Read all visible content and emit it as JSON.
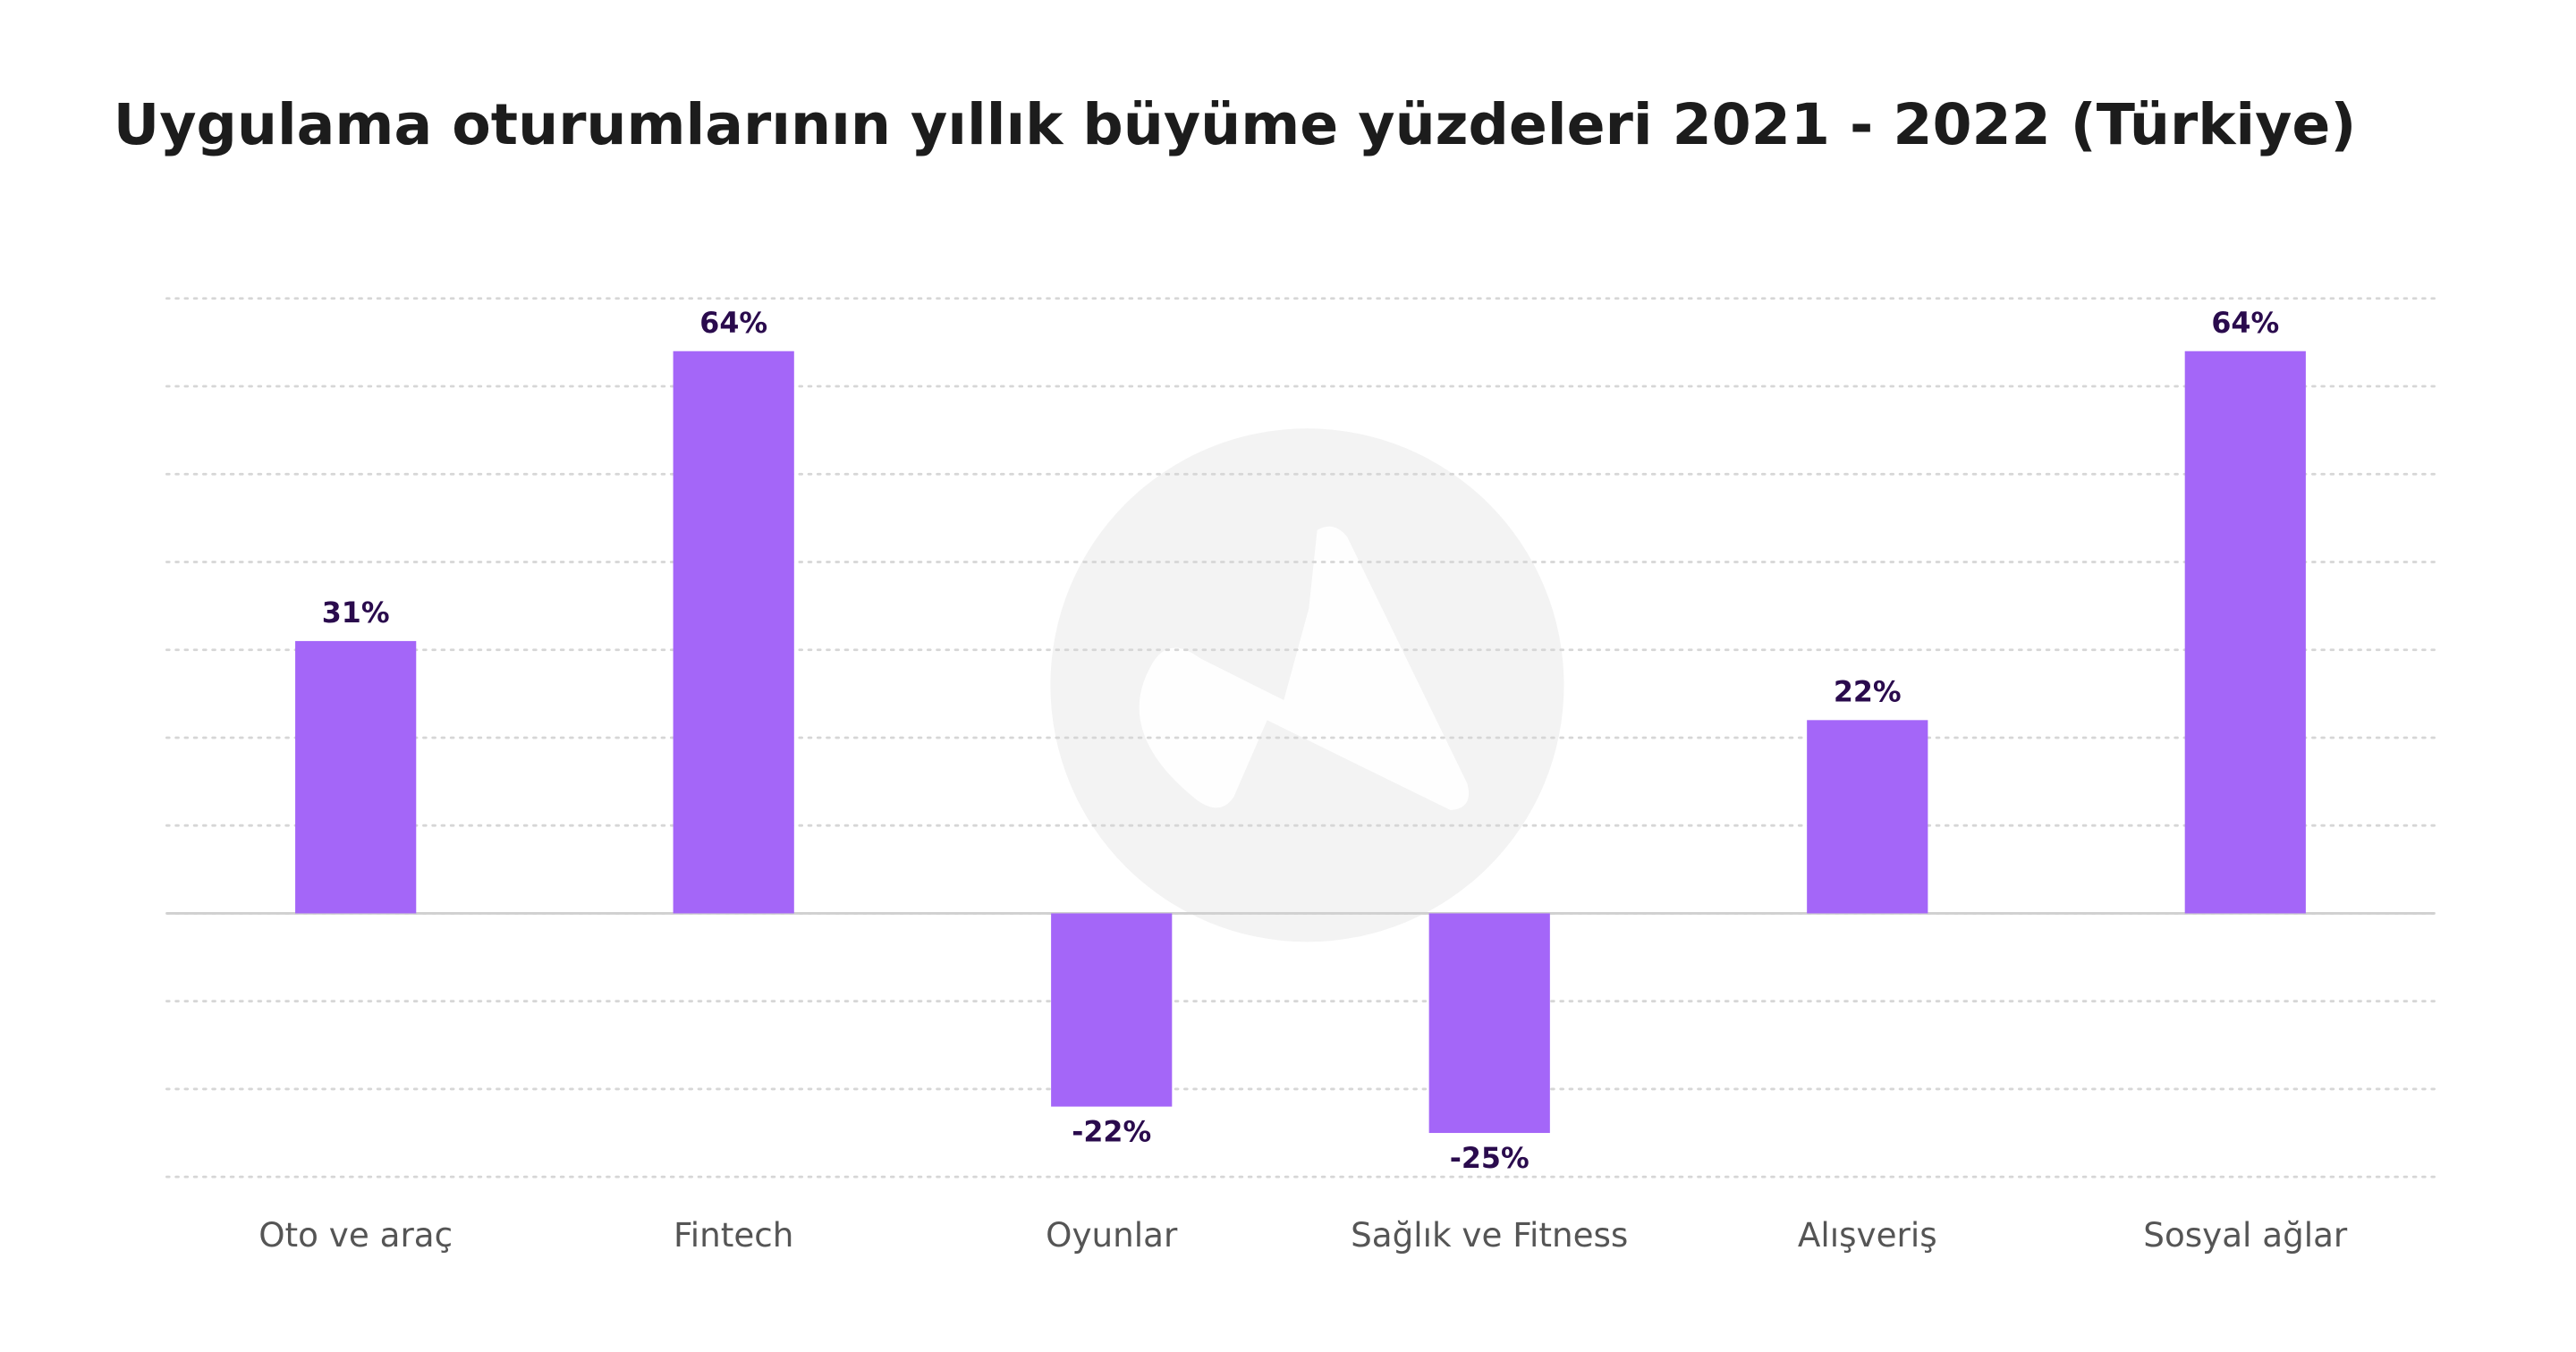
{
  "chart_data": {
    "type": "bar",
    "title": "Uygulama oturumlarının yıllık büyüme yüzdeleri 2021 - 2022 (Türkiye)",
    "categories": [
      "Oto ve araç",
      "Fintech",
      "Oyunlar",
      "Sağlık ve Fitness",
      "Alışveriş",
      "Sosyal ağlar"
    ],
    "values": [
      31,
      64,
      -22,
      -25,
      22,
      64
    ],
    "value_labels": [
      "31%",
      "64%",
      "-22%",
      "-25%",
      "22%",
      "64%"
    ],
    "color": "#a466f8",
    "ylim": [
      -30,
      70
    ],
    "yticks": [
      -30,
      -20,
      -10,
      0,
      10,
      20,
      30,
      40,
      50,
      60,
      70
    ],
    "grid": true
  }
}
